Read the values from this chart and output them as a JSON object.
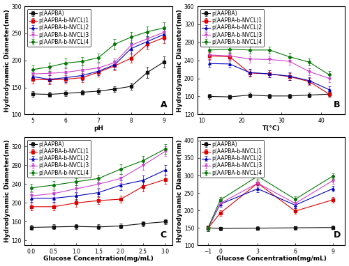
{
  "panel_A": {
    "xlabel": "pH",
    "ylabel": "Hydrodynamic Diameter(nm)",
    "label": "A",
    "xlim": [
      4.75,
      9.25
    ],
    "ylim": [
      100,
      300
    ],
    "xticks": [
      5,
      6,
      7,
      8,
      9
    ],
    "yticks": [
      100,
      150,
      200,
      250,
      300
    ],
    "series": [
      {
        "label": "p(AAPBA)",
        "color": "#111111",
        "marker": "s",
        "x": [
          5,
          5.5,
          6,
          6.5,
          7,
          7.5,
          8,
          8.5,
          9
        ],
        "y": [
          138,
          137,
          139,
          141,
          143,
          147,
          152,
          178,
          197
        ],
        "yerr": [
          5,
          5,
          5,
          5,
          5,
          5,
          6,
          10,
          10
        ]
      },
      {
        "label": "p(AAPBA-b-NVCL)1",
        "color": "#dd0000",
        "marker": "s",
        "x": [
          5,
          5.5,
          6,
          6.5,
          7,
          7.5,
          8,
          8.5,
          9
        ],
        "y": [
          165,
          164,
          165,
          168,
          178,
          190,
          204,
          230,
          242
        ],
        "yerr": [
          8,
          8,
          8,
          8,
          8,
          8,
          8,
          10,
          10
        ]
      },
      {
        "label": "p(AAPBA-b-NVCL)2",
        "color": "#0000bb",
        "marker": "^",
        "x": [
          5,
          5.5,
          6,
          6.5,
          7,
          7.5,
          8,
          8.5,
          9
        ],
        "y": [
          170,
          165,
          168,
          172,
          180,
          192,
          222,
          235,
          248
        ],
        "yerr": [
          8,
          8,
          8,
          8,
          8,
          8,
          10,
          10,
          10
        ]
      },
      {
        "label": "p(AAPBA-b-NVCL)3",
        "color": "#cc44cc",
        "marker": "v",
        "x": [
          5,
          5.5,
          6,
          6.5,
          7,
          7.5,
          8,
          8.5,
          9
        ],
        "y": [
          175,
          176,
          178,
          182,
          186,
          196,
          228,
          240,
          252
        ],
        "yerr": [
          8,
          8,
          8,
          8,
          8,
          8,
          10,
          10,
          10
        ]
      },
      {
        "label": "p(AAPBA-b-NVCL)4",
        "color": "#007700",
        "marker": "o",
        "x": [
          5,
          5.5,
          6,
          6.5,
          7,
          7.5,
          8,
          8.5,
          9
        ],
        "y": [
          183,
          188,
          195,
          198,
          205,
          230,
          243,
          253,
          260
        ],
        "yerr": [
          8,
          8,
          8,
          8,
          8,
          10,
          10,
          10,
          10
        ]
      }
    ]
  },
  "panel_B": {
    "xlabel": "T(°C)",
    "ylabel": "Hydrodynamic Diameter(nm)",
    "label": "B",
    "xlim": [
      9,
      46
    ],
    "ylim": [
      120,
      360
    ],
    "xticks": [
      10,
      20,
      30,
      40
    ],
    "yticks": [
      120,
      160,
      200,
      240,
      280,
      320,
      360
    ],
    "series": [
      {
        "label": "p(AAPBA)",
        "color": "#111111",
        "marker": "s",
        "x": [
          12,
          17,
          22,
          27,
          32,
          37,
          42
        ],
        "y": [
          160,
          159,
          163,
          161,
          161,
          163,
          165
        ],
        "yerr": [
          5,
          5,
          5,
          5,
          5,
          5,
          5
        ]
      },
      {
        "label": "p(AAPBA-b-NVCL)1",
        "color": "#dd0000",
        "marker": "s",
        "x": [
          12,
          17,
          22,
          27,
          32,
          37,
          42
        ],
        "y": [
          250,
          248,
          212,
          210,
          204,
          193,
          165
        ],
        "yerr": [
          8,
          8,
          8,
          8,
          8,
          8,
          8
        ]
      },
      {
        "label": "p(AAPBA-b-NVCL)2",
        "color": "#0000bb",
        "marker": "^",
        "x": [
          12,
          17,
          22,
          27,
          32,
          37,
          42
        ],
        "y": [
          233,
          232,
          213,
          210,
          205,
          195,
          175
        ],
        "yerr": [
          8,
          8,
          8,
          8,
          8,
          8,
          8
        ]
      },
      {
        "label": "p(AAPBA-b-NVCL)3",
        "color": "#cc44cc",
        "marker": "v",
        "x": [
          12,
          17,
          22,
          27,
          32,
          37,
          42
        ],
        "y": [
          252,
          250,
          243,
          242,
          238,
          215,
          200
        ],
        "yerr": [
          8,
          8,
          8,
          8,
          8,
          8,
          8
        ]
      },
      {
        "label": "p(AAPBA-b-NVCL)4",
        "color": "#007700",
        "marker": "o",
        "x": [
          12,
          17,
          22,
          27,
          32,
          37,
          42
        ],
        "y": [
          263,
          265,
          263,
          263,
          248,
          236,
          208
        ],
        "yerr": [
          8,
          8,
          8,
          8,
          8,
          8,
          8
        ]
      }
    ]
  },
  "panel_C": {
    "xlabel": "Glucose Concentration(mg/mL)",
    "ylabel": "Hydrodynamic Diameter(nm)",
    "label": "C",
    "xlim": [
      -0.15,
      3.15
    ],
    "ylim": [
      110,
      340
    ],
    "xticks": [
      0.0,
      0.5,
      1.0,
      1.5,
      2.0,
      2.5,
      3.0
    ],
    "yticks": [
      120,
      160,
      200,
      240,
      280,
      320
    ],
    "series": [
      {
        "label": "p(AAPBA)",
        "color": "#111111",
        "marker": "s",
        "x": [
          0.0,
          0.5,
          1.0,
          1.5,
          2.0,
          2.5,
          3.0
        ],
        "y": [
          148,
          149,
          150,
          149,
          151,
          156,
          160
        ],
        "yerr": [
          5,
          5,
          5,
          5,
          5,
          5,
          5
        ]
      },
      {
        "label": "p(AAPBA-b-NVCL)1",
        "color": "#dd0000",
        "marker": "s",
        "x": [
          0.0,
          0.5,
          1.0,
          1.5,
          2.0,
          2.5,
          3.0
        ],
        "y": [
          192,
          192,
          200,
          205,
          208,
          235,
          250
        ],
        "yerr": [
          8,
          8,
          8,
          8,
          8,
          10,
          10
        ]
      },
      {
        "label": "p(AAPBA-b-NVCL)2",
        "color": "#0000bb",
        "marker": "^",
        "x": [
          0.0,
          0.5,
          1.0,
          1.5,
          2.0,
          2.5,
          3.0
        ],
        "y": [
          210,
          210,
          215,
          222,
          238,
          248,
          270
        ],
        "yerr": [
          8,
          8,
          8,
          8,
          10,
          10,
          10
        ]
      },
      {
        "label": "p(AAPBA-b-NVCL)3",
        "color": "#cc44cc",
        "marker": "v",
        "x": [
          0.0,
          0.5,
          1.0,
          1.5,
          2.0,
          2.5,
          3.0
        ],
        "y": [
          215,
          220,
          230,
          240,
          252,
          280,
          310
        ],
        "yerr": [
          8,
          8,
          8,
          8,
          10,
          10,
          10
        ]
      },
      {
        "label": "p(AAPBA-b-NVCL)4",
        "color": "#007700",
        "marker": "o",
        "x": [
          0.0,
          0.5,
          1.0,
          1.5,
          2.0,
          2.5,
          3.0
        ],
        "y": [
          232,
          238,
          245,
          252,
          272,
          290,
          315
        ],
        "yerr": [
          8,
          8,
          8,
          8,
          10,
          10,
          10
        ]
      }
    ]
  },
  "panel_D": {
    "xlabel": "Glucose Concentration(mg/mL)",
    "ylabel": "Hydrodynamic Diameter(nm)",
    "label": "D",
    "xlim": [
      -1.8,
      10.0
    ],
    "ylim": [
      100,
      410
    ],
    "xticks": [
      -1,
      0,
      3,
      6,
      9
    ],
    "yticks": [
      100,
      150,
      200,
      250,
      300,
      350,
      400
    ],
    "series": [
      {
        "label": "p(AAPBA)",
        "color": "#111111",
        "marker": "s",
        "x": [
          -1,
          0,
          3,
          6,
          9
        ],
        "y": [
          150,
          148,
          149,
          150,
          151
        ],
        "yerr": [
          5,
          5,
          5,
          5,
          5
        ]
      },
      {
        "label": "p(AAPBA-b-NVCL)1",
        "color": "#dd0000",
        "marker": "s",
        "x": [
          -1,
          0,
          3,
          6,
          9
        ],
        "y": [
          148,
          192,
          278,
          198,
          230
        ],
        "yerr": [
          8,
          8,
          10,
          8,
          8
        ]
      },
      {
        "label": "p(AAPBA-b-NVCL)2",
        "color": "#0000bb",
        "marker": "^",
        "x": [
          -1,
          0,
          3,
          6,
          9
        ],
        "y": [
          148,
          218,
          262,
          215,
          262
        ],
        "yerr": [
          8,
          8,
          10,
          8,
          8
        ]
      },
      {
        "label": "p(AAPBA-b-NVCL)3",
        "color": "#cc44cc",
        "marker": "v",
        "x": [
          -1,
          0,
          3,
          6,
          9
        ],
        "y": [
          148,
          220,
          278,
          220,
          285
        ],
        "yerr": [
          8,
          8,
          10,
          8,
          8
        ]
      },
      {
        "label": "p(AAPBA-b-NVCL)4",
        "color": "#007700",
        "marker": "o",
        "x": [
          -1,
          0,
          3,
          6,
          9
        ],
        "y": [
          148,
          230,
          298,
          232,
          298
        ],
        "yerr": [
          8,
          8,
          10,
          8,
          8
        ]
      }
    ]
  },
  "font_size": 5.5,
  "label_font_size": 6.5,
  "tick_font_size": 5.5
}
